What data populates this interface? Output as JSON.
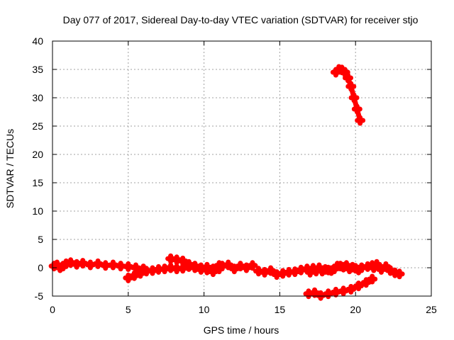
{
  "chart_data": {
    "type": "line",
    "title": "Day 077 of 2017, Sidereal Day-to-day VTEC variation (SDTVAR) for receiver stjo",
    "xlabel": "GPS time / hours",
    "ylabel": "SDTVAR / TECUs",
    "xlim": [
      0,
      25
    ],
    "ylim": [
      -5,
      40
    ],
    "xticks": [
      0,
      5,
      10,
      15,
      20,
      25
    ],
    "yticks": [
      -5,
      0,
      5,
      10,
      15,
      20,
      25,
      30,
      35,
      40
    ],
    "grid": true,
    "legend": "none",
    "series_color": "#ff0000",
    "series": [
      {
        "x": [
          0.1,
          0.3,
          0.5,
          0.7
        ],
        "y": [
          0.3,
          0.5,
          0.0,
          0.3
        ]
      },
      {
        "x": [
          0.9,
          1.2,
          1.6,
          2.0,
          2.5,
          3.0,
          3.5,
          4.0,
          4.5,
          5.0,
          5.5,
          6.0
        ],
        "y": [
          0.7,
          0.9,
          0.6,
          0.8,
          0.5,
          0.7,
          0.4,
          0.5,
          0.3,
          0.2,
          0.0,
          -0.2
        ]
      },
      {
        "x": [
          5.0,
          5.4,
          5.8,
          6.2,
          6.6,
          7.0,
          7.4,
          7.8,
          8.2,
          8.6,
          9.0,
          9.4,
          9.8,
          10.2,
          10.6,
          11.0
        ],
        "y": [
          -1.8,
          -1.4,
          -1.0,
          -0.6,
          -0.5,
          -0.3,
          -0.2,
          0.0,
          -0.2,
          -0.1,
          0.2,
          0.0,
          -0.3,
          0.1,
          -0.2,
          0.4
        ]
      },
      {
        "x": [
          7.8,
          8.2,
          8.6,
          9.0,
          9.4,
          9.8,
          10.2,
          10.6,
          11.0
        ],
        "y": [
          1.6,
          1.4,
          1.2,
          0.6,
          0.3,
          0.0,
          -0.4,
          -0.7,
          -0.2
        ]
      },
      {
        "x": [
          11.2,
          11.6,
          12.0,
          12.4,
          12.8,
          13.2
        ],
        "y": [
          0.3,
          0.5,
          -0.2,
          0.3,
          0.0,
          0.4
        ]
      },
      {
        "x": [
          13.6,
          14.0,
          14.4,
          14.8,
          15.2,
          15.6,
          16.0,
          16.4,
          16.8,
          17.2,
          17.6,
          18.0,
          18.4,
          18.8,
          19.2,
          19.6,
          20.0,
          20.4,
          20.8,
          21.2
        ],
        "y": [
          -0.6,
          -0.8,
          -0.5,
          -1.2,
          -1.0,
          -0.8,
          -0.7,
          -0.4,
          -0.2,
          -0.1,
          0.0,
          -0.3,
          -0.5,
          0.3,
          0.1,
          -0.2,
          -0.1,
          0.0,
          0.2,
          0.0
        ]
      },
      {
        "x": [
          17.0,
          17.4,
          17.8,
          18.2,
          18.6,
          19.0,
          19.4,
          19.8,
          20.2
        ],
        "y": [
          -0.8,
          -0.6,
          -0.6,
          -0.4,
          -0.2,
          0.3,
          0.4,
          0.1,
          -0.4
        ]
      },
      {
        "x": [
          16.9,
          17.3,
          17.7,
          18.2,
          18.7,
          19.2,
          19.7,
          20.2,
          20.7,
          21.1
        ],
        "y": [
          -4.6,
          -4.4,
          -4.9,
          -4.6,
          -4.3,
          -4.1,
          -3.8,
          -3.2,
          -2.6,
          -2.0
        ]
      },
      {
        "x": [
          21.1,
          21.4,
          21.7,
          22.0,
          22.3,
          22.6,
          22.9
        ],
        "y": [
          0.4,
          0.6,
          -0.3,
          0.2,
          -0.5,
          -0.9,
          -1.1
        ]
      },
      {
        "x": [
          18.7,
          18.9,
          19.1,
          19.3,
          19.5,
          19.7,
          19.9,
          20.1,
          20.3
        ],
        "y": [
          34.5,
          35.0,
          34.9,
          34.5,
          33.5,
          32.0,
          30.0,
          28.0,
          26.0
        ]
      }
    ]
  }
}
